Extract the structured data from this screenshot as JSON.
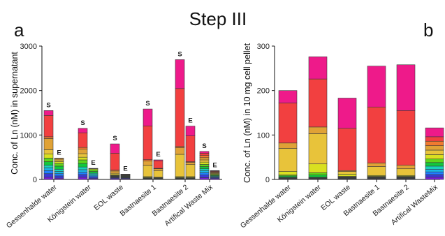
{
  "figure": {
    "title": "Step III",
    "panels": [
      "a",
      "b"
    ]
  },
  "chart_data": [
    {
      "panel": "a",
      "type": "bar",
      "stacked": true,
      "grouped": true,
      "ylabel": "Conc. of Ln (nM) in supernatant",
      "ylim": [
        0,
        3000
      ],
      "yticks": [
        "0",
        "1000",
        "2000",
        "3000"
      ],
      "categories": [
        "Gessenhalde water",
        "Königstein water",
        "EOL waste",
        "Bastnaesite 1",
        "Bastnaesite 2",
        "Artifical Waste Mix"
      ],
      "bar_labels": [
        "S",
        "E"
      ],
      "colors": [
        "#7a1fd6",
        "#3a3ad8",
        "#1f7fff",
        "#19b6e6",
        "#17d3b8",
        "#12c83c",
        "#5ed61a",
        "#d9e020",
        "#e8c33a",
        "#e0a236",
        "#f07a30",
        "#f24040",
        "#ee1a8a"
      ],
      "stacks": [
        {
          "category": "Gessenhalde water",
          "bar": "S",
          "segments": [
            50,
            80,
            70,
            60,
            60,
            80,
            80,
            90,
            100,
            250,
            40,
            480,
            110
          ]
        },
        {
          "category": "Gessenhalde water",
          "bar": "E",
          "segments": [
            30,
            50,
            50,
            50,
            50,
            70,
            60,
            40,
            40,
            30,
            10,
            0,
            0
          ]
        },
        {
          "category": "Königstein water",
          "bar": "S",
          "segments": [
            50,
            60,
            50,
            60,
            60,
            80,
            80,
            60,
            80,
            100,
            40,
            330,
            100
          ]
        },
        {
          "category": "Königstein water",
          "bar": "E",
          "segments": [
            20,
            30,
            30,
            30,
            30,
            40,
            40,
            20,
            10,
            0,
            0,
            0,
            0
          ]
        },
        {
          "category": "EOL waste",
          "bar": "S",
          "segments": [
            20,
            20,
            10,
            10,
            10,
            10,
            10,
            20,
            30,
            50,
            20,
            380,
            210
          ]
        },
        {
          "category": "EOL waste",
          "bar": "E",
          "segments": [
            15,
            15,
            10,
            10,
            10,
            10,
            10,
            10,
            10,
            10,
            5,
            5,
            0
          ]
        },
        {
          "category": "Bastnaesite 1",
          "bar": "S",
          "segments": [
            5,
            5,
            5,
            5,
            5,
            10,
            10,
            20,
            250,
            100,
            30,
            760,
            380
          ]
        },
        {
          "category": "Bastnaesite 1",
          "bar": "E",
          "segments": [
            5,
            5,
            5,
            5,
            5,
            5,
            10,
            10,
            150,
            40,
            10,
            170,
            20
          ]
        },
        {
          "category": "Bastnaesite 2",
          "bar": "S",
          "segments": [
            5,
            5,
            5,
            5,
            5,
            10,
            10,
            20,
            500,
            150,
            30,
            1300,
            650
          ]
        },
        {
          "category": "Bastnaesite 2",
          "bar": "E",
          "segments": [
            5,
            5,
            5,
            5,
            5,
            10,
            10,
            20,
            270,
            50,
            15,
            580,
            220
          ]
        },
        {
          "category": "Artifical Waste Mix",
          "bar": "S",
          "segments": [
            40,
            60,
            50,
            50,
            40,
            50,
            50,
            50,
            50,
            50,
            50,
            50,
            40
          ]
        },
        {
          "category": "Artifical Waste Mix",
          "bar": "E",
          "segments": [
            20,
            20,
            15,
            15,
            15,
            15,
            15,
            15,
            15,
            15,
            15,
            15,
            10
          ]
        }
      ]
    },
    {
      "panel": "b",
      "type": "bar",
      "stacked": true,
      "ylabel": "Conc. of Ln (nM) in 10 mg cell pellet",
      "ylim": [
        0,
        300
      ],
      "yticks": [
        "0",
        "100",
        "200",
        "300"
      ],
      "categories": [
        "Gessenhalde water",
        "Königstein water",
        "EOL waste",
        "Bastnaesite 1",
        "Bastnaesite 2",
        "Artifical WasteMix"
      ],
      "colors": [
        "#7a1fd6",
        "#3a3ad8",
        "#1f7fff",
        "#19b6e6",
        "#17d3b8",
        "#12c83c",
        "#5ed61a",
        "#d9e020",
        "#e8c33a",
        "#e0a236",
        "#f07a30",
        "#f24040",
        "#ee1a8a"
      ],
      "stacks": [
        {
          "category": "Gessenhalde water",
          "segments": [
            1,
            1,
            1,
            1,
            1,
            3,
            2,
            8,
            52,
            12,
            0,
            90,
            28
          ]
        },
        {
          "category": "Königstein water",
          "segments": [
            1,
            1,
            1,
            1,
            1,
            5,
            5,
            20,
            68,
            15,
            0,
            108,
            50
          ]
        },
        {
          "category": "EOL waste",
          "segments": [
            1,
            1,
            1,
            1,
            1,
            1,
            1,
            5,
            6,
            2,
            0,
            95,
            68
          ]
        },
        {
          "category": "Bastnaesite 1",
          "segments": [
            1,
            1,
            1,
            1,
            1,
            1,
            1,
            2,
            20,
            8,
            0,
            126,
            92
          ]
        },
        {
          "category": "Bastnaesite 2",
          "segments": [
            1,
            1,
            1,
            1,
            1,
            1,
            1,
            2,
            15,
            8,
            0,
            123,
            103
          ]
        },
        {
          "category": "Artifical WasteMix",
          "segments": [
            5,
            6,
            6,
            6,
            7,
            8,
            8,
            10,
            10,
            10,
            10,
            10,
            20
          ]
        }
      ]
    }
  ]
}
